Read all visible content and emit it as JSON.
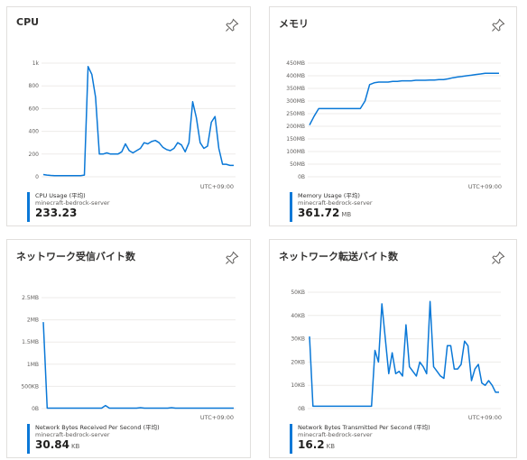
{
  "timezone": "UTC+09:00",
  "line_color": "#0a78d7",
  "cards": [
    {
      "title": "CPU",
      "legend_name": "CPU Usage (平均)",
      "legend_resource": "minecraft-bedrock-server",
      "legend_value": "233.23",
      "legend_unit": "",
      "chart_data": {
        "type": "line",
        "y_ticks": [
          "1k",
          "800",
          "600",
          "400",
          "200",
          "0"
        ],
        "ylim": [
          0,
          1000
        ],
        "values": [
          20,
          15,
          12,
          10,
          10,
          10,
          10,
          10,
          10,
          10,
          10,
          15,
          970,
          900,
          700,
          200,
          200,
          210,
          200,
          200,
          200,
          220,
          290,
          230,
          210,
          230,
          250,
          300,
          290,
          310,
          320,
          300,
          260,
          240,
          230,
          250,
          300,
          280,
          220,
          300,
          660,
          520,
          300,
          250,
          270,
          480,
          530,
          250,
          110,
          110,
          100,
          100
        ]
      }
    },
    {
      "title": "メモリ",
      "legend_name": "Memory Usage (平均)",
      "legend_resource": "minecraft-bedrock-server",
      "legend_value": "361.72",
      "legend_unit": "MB",
      "chart_data": {
        "type": "line",
        "y_ticks": [
          "450MB",
          "400MB",
          "350MB",
          "300MB",
          "250MB",
          "200MB",
          "150MB",
          "100MB",
          "50MB",
          "0B"
        ],
        "ylim": [
          0,
          450
        ],
        "values": [
          205,
          240,
          270,
          270,
          270,
          270,
          270,
          270,
          270,
          270,
          270,
          270,
          300,
          365,
          372,
          375,
          375,
          375,
          378,
          378,
          380,
          380,
          380,
          382,
          382,
          382,
          383,
          383,
          385,
          385,
          388,
          392,
          395,
          397,
          400,
          402,
          405,
          407,
          410,
          410,
          410,
          410
        ]
      }
    },
    {
      "title": "ネットワーク受信バイト数",
      "legend_name": "Network Bytes Received Per Second (平均)",
      "legend_resource": "minecraft-bedrock-server",
      "legend_value": "30.84",
      "legend_unit": "KB",
      "chart_data": {
        "type": "line",
        "y_ticks": [
          "2.5MB",
          "2MB",
          "1.5MB",
          "1MB",
          "500KB",
          "0B"
        ],
        "ylim": [
          0,
          2.5
        ],
        "values": [
          1.95,
          0.01,
          0.01,
          0.01,
          0.01,
          0.01,
          0.01,
          0.01,
          0.01,
          0.01,
          0.01,
          0.01,
          0.01,
          0.01,
          0.01,
          0.01,
          0.07,
          0.01,
          0.01,
          0.01,
          0.01,
          0.01,
          0.01,
          0.01,
          0.01,
          0.02,
          0.01,
          0.01,
          0.01,
          0.01,
          0.01,
          0.01,
          0.01,
          0.02,
          0.01,
          0.01,
          0.01,
          0.01,
          0.01,
          0.01,
          0.01,
          0.01,
          0.01,
          0.01,
          0.01,
          0.01,
          0.01,
          0.01,
          0.01,
          0.01
        ]
      }
    },
    {
      "title": "ネットワーク転送バイト数",
      "legend_name": "Network Bytes Transmitted Per Second (平均)",
      "legend_resource": "minecraft-bedrock-server",
      "legend_value": "16.2",
      "legend_unit": "KB",
      "chart_data": {
        "type": "line",
        "y_ticks": [
          "50KB",
          "40KB",
          "30KB",
          "20KB",
          "10KB",
          "0B"
        ],
        "ylim": [
          0,
          50
        ],
        "values": [
          31,
          1,
          1,
          1,
          1,
          1,
          1,
          1,
          1,
          1,
          1,
          1,
          1,
          1,
          1,
          1,
          1,
          1,
          1,
          25,
          20,
          45,
          30,
          15,
          24,
          15,
          16,
          14,
          36,
          18,
          16,
          14,
          20,
          18,
          15,
          46,
          18,
          16,
          14,
          13,
          27,
          27,
          17,
          17,
          19,
          29,
          27,
          12,
          17,
          19,
          11,
          10,
          12,
          10,
          7,
          7
        ]
      }
    }
  ]
}
